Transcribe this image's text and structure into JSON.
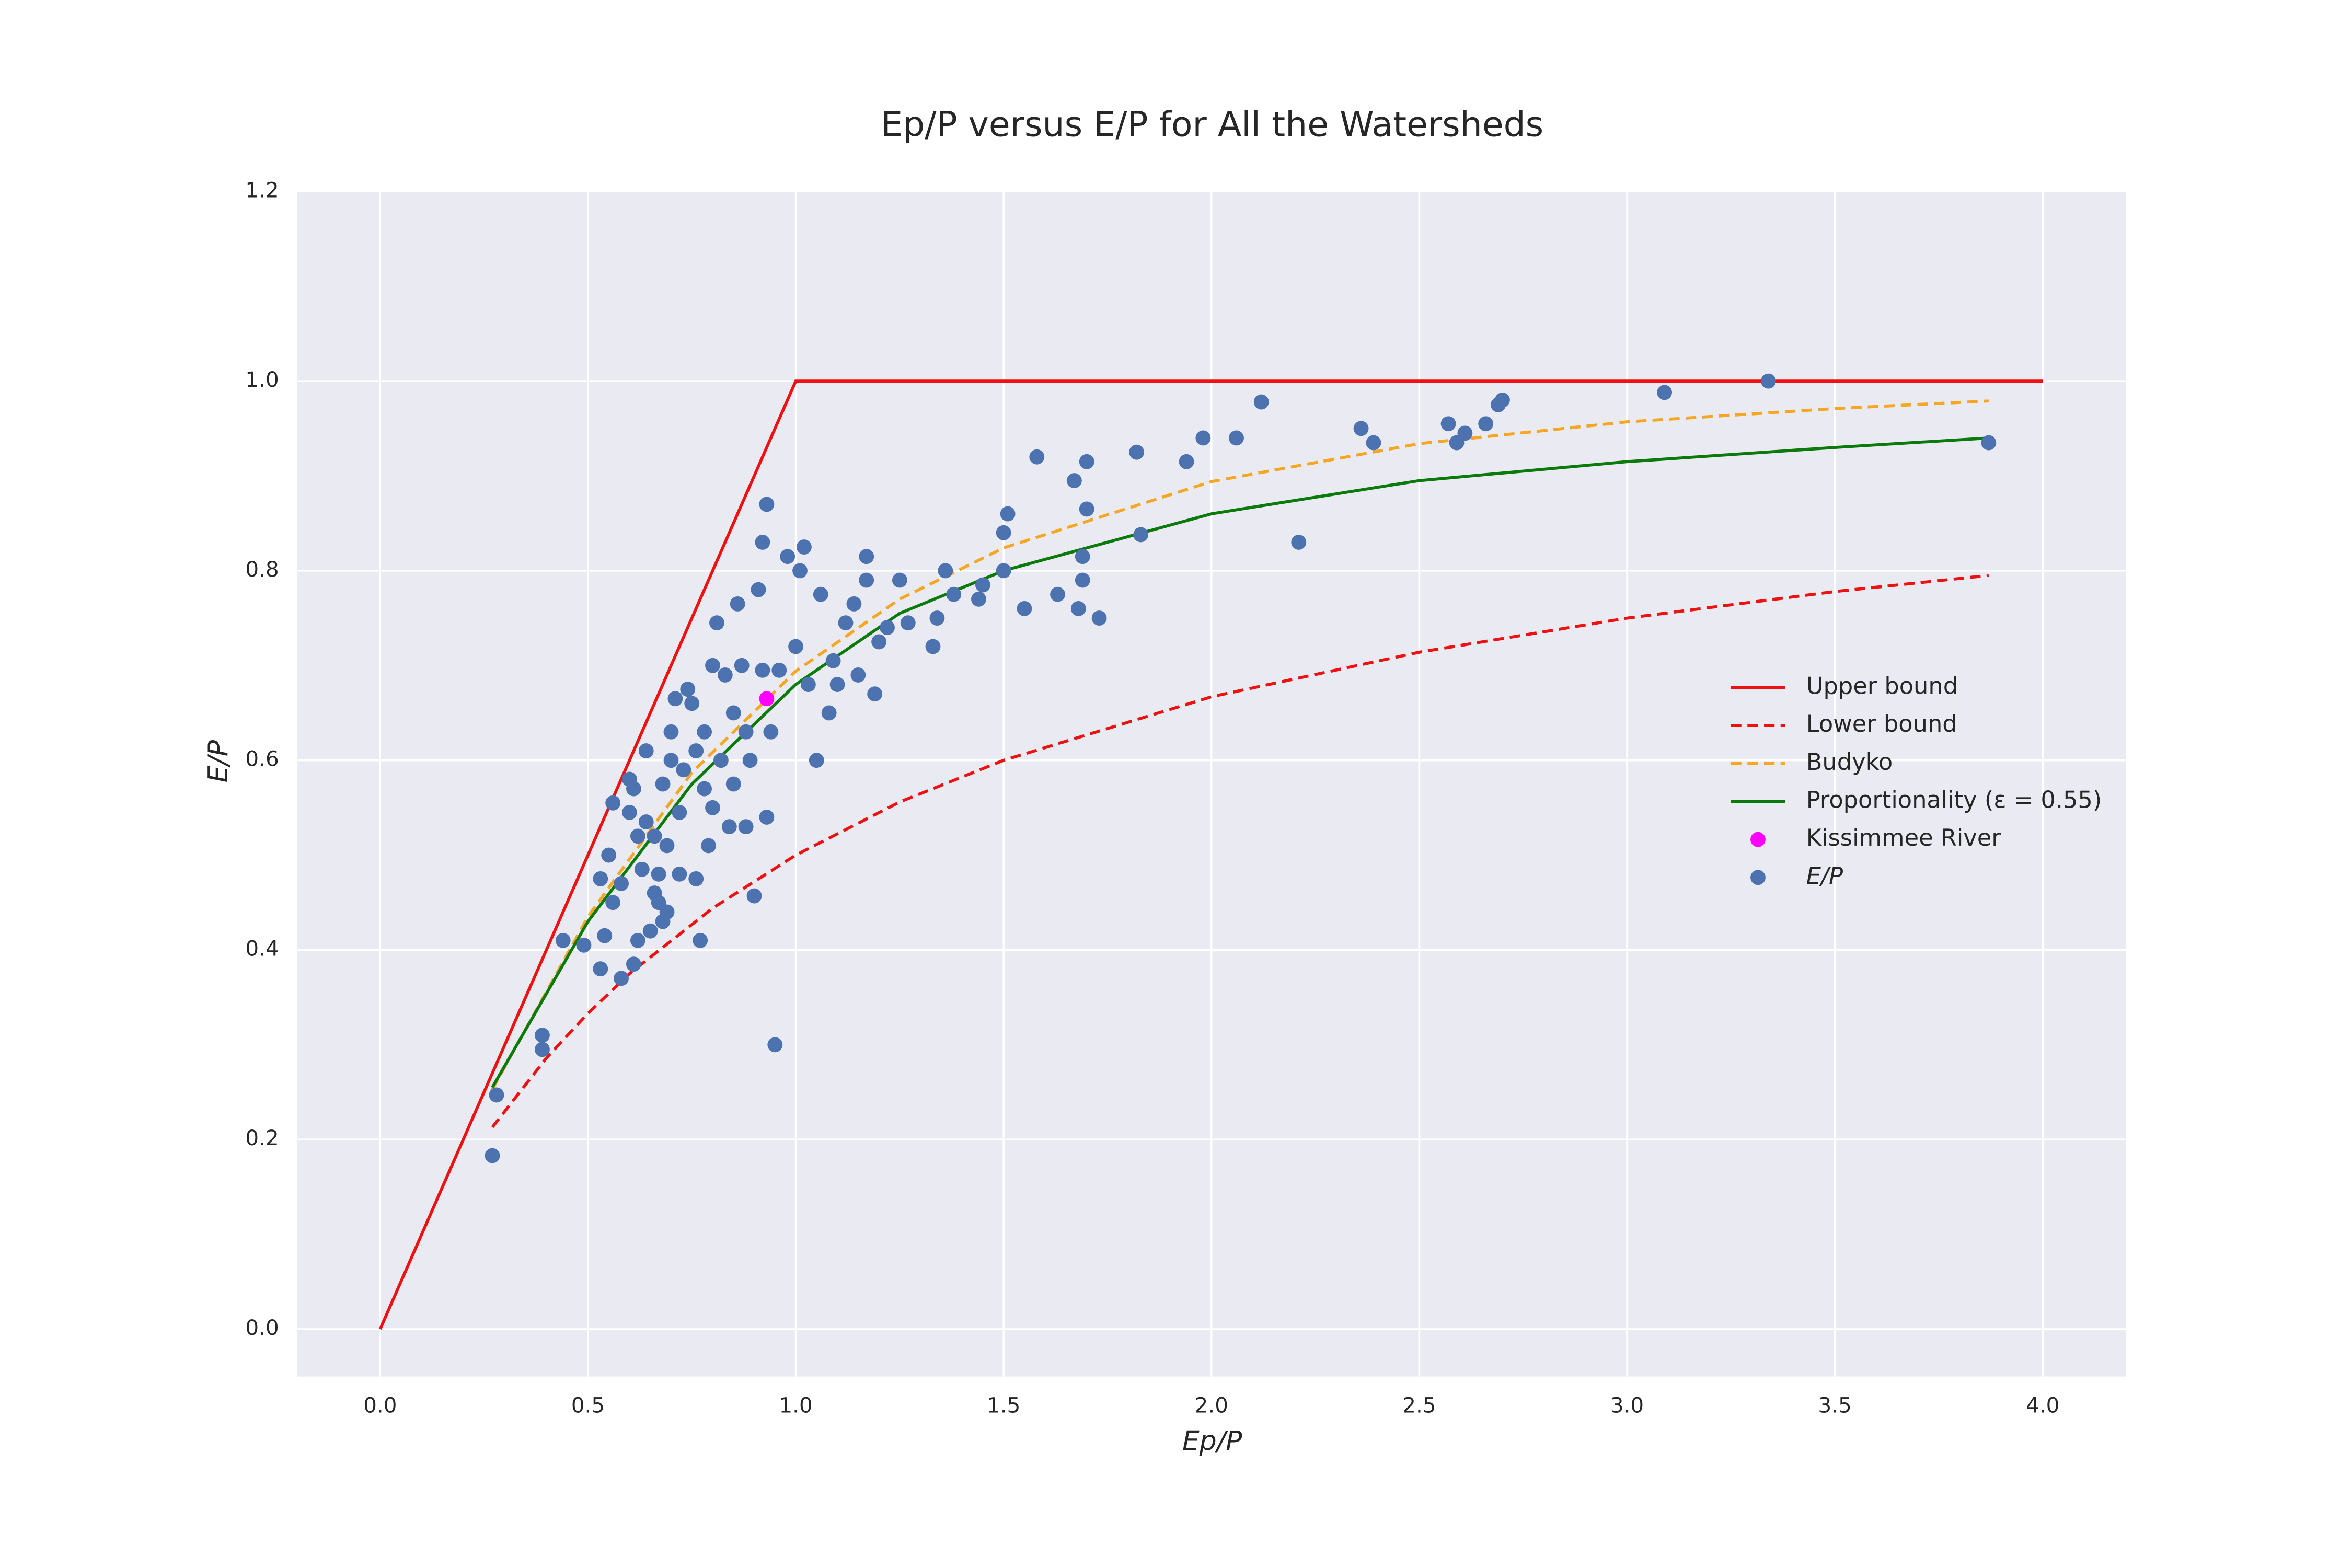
{
  "chart_data": {
    "type": "scatter",
    "title": "Ep/P versus E/P for All the Watersheds",
    "x_label": "Ep/P",
    "y_label": "E/P",
    "xlim": [
      -0.2,
      4.2
    ],
    "ylim": [
      -0.05,
      1.2
    ],
    "xticks": [
      {
        "value": 0,
        "label": "0.0"
      },
      0.5,
      {
        "value": 1,
        "label": "1.0"
      },
      1.5,
      {
        "value": 2,
        "label": "2.0"
      },
      2.5,
      {
        "value": 3,
        "label": "3.0"
      },
      3.5,
      {
        "value": 4,
        "label": "4.0"
      }
    ],
    "yticks": [
      {
        "value": 0,
        "label": "0.0"
      },
      0.2,
      0.4,
      0.6,
      0.8,
      {
        "value": 1,
        "label": "1.0"
      },
      1.2
    ],
    "grid": true,
    "legend_position": "right",
    "series": [
      {
        "name": "Upper bound",
        "kind": "line",
        "dash": "solid",
        "color": "#ee1111",
        "x": [
          0,
          1,
          4
        ],
        "values": [
          0,
          1,
          1
        ]
      },
      {
        "name": "Lower bound",
        "kind": "line",
        "dash": "dashed",
        "color": "#ee1111",
        "x": [
          0.27,
          0.4,
          0.5,
          0.6,
          0.8,
          1.0,
          1.25,
          1.5,
          2.0,
          2.5,
          3.0,
          3.5,
          3.87
        ],
        "values": [
          0.213,
          0.286,
          0.333,
          0.375,
          0.444,
          0.5,
          0.556,
          0.6,
          0.667,
          0.714,
          0.75,
          0.778,
          0.795
        ]
      },
      {
        "name": "Budyko",
        "kind": "line",
        "dash": "dashed",
        "color": "#f5a623",
        "x": [
          0.27,
          0.5,
          0.75,
          1.0,
          1.25,
          1.5,
          2.0,
          2.5,
          3.0,
          3.5,
          3.87
        ],
        "values": [
          0.253,
          0.435,
          0.587,
          0.694,
          0.77,
          0.824,
          0.894,
          0.934,
          0.957,
          0.971,
          0.979
        ]
      },
      {
        "name": "Proportionality (ε = 0.55)",
        "kind": "line",
        "dash": "solid",
        "color": "#0a7a0a",
        "x": [
          0.27,
          0.5,
          0.75,
          1.0,
          1.25,
          1.5,
          2.0,
          2.5,
          3.0,
          3.5,
          3.87
        ],
        "values": [
          0.255,
          0.43,
          0.575,
          0.68,
          0.755,
          0.8,
          0.86,
          0.895,
          0.915,
          0.93,
          0.94
        ]
      },
      {
        "name": "Kissimmee River",
        "kind": "points",
        "color": "#ff00ff",
        "x": [
          0.93
        ],
        "values": [
          0.665
        ]
      },
      {
        "name": "E/P",
        "kind": "points",
        "color": "#4c72b0",
        "x": [
          0.27,
          0.28,
          0.39,
          0.39,
          0.44,
          0.49,
          0.53,
          0.53,
          0.54,
          0.55,
          0.56,
          0.56,
          0.58,
          0.58,
          0.6,
          0.6,
          0.61,
          0.61,
          0.62,
          0.62,
          0.63,
          0.64,
          0.64,
          0.65,
          0.66,
          0.66,
          0.67,
          0.67,
          0.68,
          0.68,
          0.69,
          0.69,
          0.7,
          0.7,
          0.71,
          0.72,
          0.72,
          0.73,
          0.74,
          0.75,
          0.76,
          0.76,
          0.77,
          0.78,
          0.78,
          0.79,
          0.8,
          0.8,
          0.81,
          0.82,
          0.83,
          0.84,
          0.85,
          0.85,
          0.86,
          0.87,
          0.88,
          0.88,
          0.89,
          0.9,
          0.91,
          0.92,
          0.92,
          0.93,
          0.93,
          0.94,
          0.95,
          0.96,
          0.98,
          1.0,
          1.01,
          1.02,
          1.03,
          1.05,
          1.06,
          1.08,
          1.09,
          1.1,
          1.12,
          1.14,
          1.15,
          1.17,
          1.17,
          1.19,
          1.2,
          1.22,
          1.25,
          1.27,
          1.33,
          1.34,
          1.36,
          1.38,
          1.44,
          1.45,
          1.5,
          1.5,
          1.51,
          1.55,
          1.58,
          1.63,
          1.67,
          1.68,
          1.69,
          1.69,
          1.7,
          1.7,
          1.73,
          1.82,
          1.83,
          1.94,
          1.98,
          2.06,
          2.12,
          2.21,
          2.36,
          2.39,
          2.57,
          2.59,
          2.61,
          2.66,
          2.69,
          2.7,
          3.09,
          3.34,
          3.87
        ],
        "values": [
          0.183,
          0.247,
          0.31,
          0.295,
          0.41,
          0.405,
          0.475,
          0.38,
          0.415,
          0.5,
          0.555,
          0.45,
          0.47,
          0.37,
          0.58,
          0.545,
          0.57,
          0.385,
          0.52,
          0.41,
          0.485,
          0.61,
          0.535,
          0.42,
          0.46,
          0.52,
          0.45,
          0.48,
          0.43,
          0.575,
          0.44,
          0.51,
          0.63,
          0.6,
          0.665,
          0.48,
          0.545,
          0.59,
          0.675,
          0.66,
          0.61,
          0.475,
          0.41,
          0.57,
          0.63,
          0.51,
          0.7,
          0.55,
          0.745,
          0.6,
          0.69,
          0.53,
          0.575,
          0.65,
          0.765,
          0.7,
          0.63,
          0.53,
          0.6,
          0.457,
          0.78,
          0.83,
          0.695,
          0.54,
          0.87,
          0.63,
          0.3,
          0.695,
          0.815,
          0.72,
          0.8,
          0.825,
          0.68,
          0.6,
          0.775,
          0.65,
          0.705,
          0.68,
          0.745,
          0.765,
          0.69,
          0.79,
          0.815,
          0.67,
          0.725,
          0.74,
          0.79,
          0.745,
          0.72,
          0.75,
          0.8,
          0.775,
          0.77,
          0.785,
          0.84,
          0.8,
          0.86,
          0.76,
          0.92,
          0.775,
          0.895,
          0.76,
          0.79,
          0.815,
          0.915,
          0.865,
          0.75,
          0.925,
          0.838,
          0.915,
          0.94,
          0.94,
          0.978,
          0.83,
          0.95,
          0.935,
          0.955,
          0.935,
          0.945,
          0.955,
          0.975,
          0.98,
          0.988,
          1.0,
          0.935
        ]
      }
    ]
  }
}
